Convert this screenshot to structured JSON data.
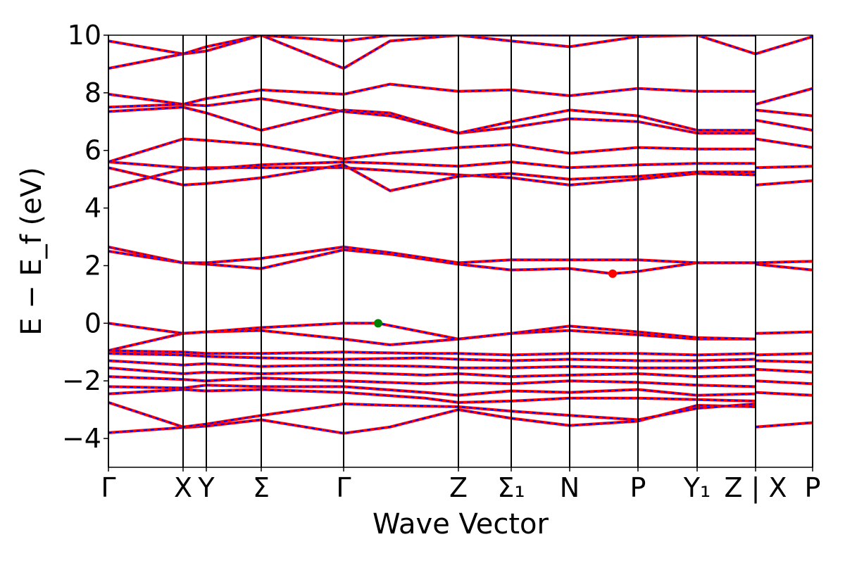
{
  "chart_data": {
    "type": "line",
    "title": "",
    "xlabel": "Wave Vector",
    "ylabel": "E − E_f (eV)",
    "ylim": [
      -5,
      10
    ],
    "y_ticks": [
      -4,
      -2,
      0,
      2,
      4,
      6,
      8,
      10
    ],
    "y_tick_labels": [
      "−4",
      "−2",
      "0",
      "2",
      "4",
      "6",
      "8",
      "10"
    ],
    "x_range": [
      0,
      1
    ],
    "kpoint_ticks": [
      {
        "x": 0.0,
        "label": "Γ"
      },
      {
        "x": 0.106,
        "label": "X"
      },
      {
        "x": 0.139,
        "label": "Y"
      },
      {
        "x": 0.217,
        "label": "Σ"
      },
      {
        "x": 0.334,
        "label": "Γ"
      },
      {
        "x": 0.497,
        "label": "Z"
      },
      {
        "x": 0.572,
        "label": "Σ₁"
      },
      {
        "x": 0.655,
        "label": "N"
      },
      {
        "x": 0.752,
        "label": "P"
      },
      {
        "x": 0.836,
        "label": "Y₁"
      },
      {
        "x": 0.919,
        "label": "Z | X"
      },
      {
        "x": 1.0,
        "label": "P"
      }
    ],
    "grid": false,
    "legend": "none",
    "band_style": {
      "outer_color": "#ff0000",
      "inner_dash_color": "#0000ff"
    },
    "markers": [
      {
        "name": "vbm",
        "x": 0.383,
        "y": 0.0,
        "color": "#008000"
      },
      {
        "name": "cbm",
        "x": 0.716,
        "y": 1.72,
        "color": "#ff0000"
      }
    ],
    "bands": [
      [
        [
          0,
          -3.8
        ],
        [
          0.106,
          -3.62
        ],
        [
          0.139,
          -3.57
        ],
        [
          0.217,
          -3.35
        ],
        [
          0.334,
          -3.82
        ],
        [
          0.4,
          -3.6
        ],
        [
          0.497,
          -3.0
        ],
        [
          0.572,
          -3.3
        ],
        [
          0.655,
          -3.55
        ],
        [
          0.752,
          -3.4
        ],
        [
          0.836,
          -2.85
        ],
        [
          0.919,
          -2.9
        ]
      ],
      [
        [
          0,
          -2.75
        ],
        [
          0.106,
          -3.6
        ],
        [
          0.139,
          -3.5
        ],
        [
          0.217,
          -3.2
        ],
        [
          0.334,
          -2.8
        ],
        [
          0.4,
          -2.85
        ],
        [
          0.497,
          -2.9
        ],
        [
          0.572,
          -3.05
        ],
        [
          0.655,
          -3.2
        ],
        [
          0.752,
          -3.35
        ],
        [
          0.836,
          -2.95
        ],
        [
          0.919,
          -2.8
        ]
      ],
      [
        [
          0,
          -2.45
        ],
        [
          0.106,
          -2.3
        ],
        [
          0.139,
          -2.35
        ],
        [
          0.217,
          -2.3
        ],
        [
          0.334,
          -2.4
        ],
        [
          0.45,
          -2.6
        ],
        [
          0.497,
          -2.75
        ],
        [
          0.572,
          -2.7
        ],
        [
          0.655,
          -2.6
        ],
        [
          0.752,
          -2.6
        ],
        [
          0.836,
          -2.65
        ],
        [
          0.919,
          -2.7
        ]
      ],
      [
        [
          0,
          -2.2
        ],
        [
          0.106,
          -2.25
        ],
        [
          0.139,
          -2.15
        ],
        [
          0.217,
          -2.2
        ],
        [
          0.334,
          -2.2
        ],
        [
          0.45,
          -2.4
        ],
        [
          0.497,
          -2.5
        ],
        [
          0.572,
          -2.35
        ],
        [
          0.655,
          -2.4
        ],
        [
          0.752,
          -2.3
        ],
        [
          0.836,
          -2.5
        ],
        [
          0.919,
          -2.45
        ]
      ],
      [
        [
          0,
          -1.85
        ],
        [
          0.106,
          -1.95
        ],
        [
          0.139,
          -2.0
        ],
        [
          0.217,
          -1.9
        ],
        [
          0.334,
          -2.0
        ],
        [
          0.45,
          -2.1
        ],
        [
          0.497,
          -2.05
        ],
        [
          0.572,
          -2.1
        ],
        [
          0.655,
          -2.0
        ],
        [
          0.752,
          -2.05
        ],
        [
          0.836,
          -2.15
        ],
        [
          0.919,
          -2.2
        ]
      ],
      [
        [
          0,
          -1.55
        ],
        [
          0.106,
          -1.75
        ],
        [
          0.139,
          -1.7
        ],
        [
          0.217,
          -1.75
        ],
        [
          0.334,
          -1.7
        ],
        [
          0.45,
          -1.8
        ],
        [
          0.497,
          -1.75
        ],
        [
          0.572,
          -1.85
        ],
        [
          0.655,
          -1.8
        ],
        [
          0.752,
          -1.75
        ],
        [
          0.836,
          -1.85
        ],
        [
          0.919,
          -1.8
        ]
      ],
      [
        [
          0,
          -1.3
        ],
        [
          0.106,
          -1.45
        ],
        [
          0.139,
          -1.4
        ],
        [
          0.217,
          -1.5
        ],
        [
          0.334,
          -1.45
        ],
        [
          0.45,
          -1.5
        ],
        [
          0.497,
          -1.55
        ],
        [
          0.572,
          -1.55
        ],
        [
          0.655,
          -1.5
        ],
        [
          0.752,
          -1.55
        ],
        [
          0.836,
          -1.55
        ],
        [
          0.919,
          -1.5
        ]
      ],
      [
        [
          0,
          -1.05
        ],
        [
          0.106,
          -1.1
        ],
        [
          0.139,
          -1.15
        ],
        [
          0.217,
          -1.2
        ],
        [
          0.334,
          -1.25
        ],
        [
          0.45,
          -1.2
        ],
        [
          0.497,
          -1.25
        ],
        [
          0.572,
          -1.3
        ],
        [
          0.655,
          -1.25
        ],
        [
          0.752,
          -1.3
        ],
        [
          0.836,
          -1.3
        ],
        [
          0.919,
          -1.25
        ]
      ],
      [
        [
          0,
          -0.95
        ],
        [
          0.106,
          -1.0
        ],
        [
          0.139,
          -1.05
        ],
        [
          0.217,
          -1.05
        ],
        [
          0.334,
          -1.0
        ],
        [
          0.45,
          -1.05
        ],
        [
          0.497,
          -1.05
        ],
        [
          0.572,
          -1.1
        ],
        [
          0.655,
          -1.05
        ],
        [
          0.752,
          -1.05
        ],
        [
          0.836,
          -1.1
        ],
        [
          0.919,
          -1.05
        ]
      ],
      [
        [
          0,
          -0.95
        ],
        [
          0.106,
          -0.35
        ],
        [
          0.139,
          -0.3
        ],
        [
          0.217,
          -0.25
        ],
        [
          0.334,
          -0.55
        ],
        [
          0.4,
          -0.75
        ],
        [
          0.497,
          -0.55
        ],
        [
          0.572,
          -0.35
        ],
        [
          0.655,
          -0.25
        ],
        [
          0.752,
          -0.4
        ],
        [
          0.836,
          -0.55
        ],
        [
          0.919,
          -0.55
        ]
      ],
      [
        [
          0,
          0.0
        ],
        [
          0.106,
          -0.35
        ],
        [
          0.139,
          -0.3
        ],
        [
          0.217,
          -0.15
        ],
        [
          0.334,
          0.0
        ],
        [
          0.383,
          0.0
        ],
        [
          0.497,
          -0.55
        ],
        [
          0.572,
          -0.35
        ],
        [
          0.655,
          -0.1
        ],
        [
          0.752,
          -0.3
        ],
        [
          0.836,
          -0.5
        ],
        [
          0.919,
          -0.55
        ]
      ],
      [
        [
          0,
          2.5
        ],
        [
          0.106,
          2.1
        ],
        [
          0.139,
          2.05
        ],
        [
          0.217,
          1.9
        ],
        [
          0.334,
          2.55
        ],
        [
          0.4,
          2.4
        ],
        [
          0.497,
          2.05
        ],
        [
          0.572,
          1.85
        ],
        [
          0.655,
          1.9
        ],
        [
          0.716,
          1.72
        ],
        [
          0.752,
          1.8
        ],
        [
          0.836,
          2.1
        ],
        [
          0.919,
          2.1
        ]
      ],
      [
        [
          0,
          2.65
        ],
        [
          0.106,
          2.1
        ],
        [
          0.139,
          2.1
        ],
        [
          0.217,
          2.25
        ],
        [
          0.334,
          2.65
        ],
        [
          0.4,
          2.45
        ],
        [
          0.497,
          2.1
        ],
        [
          0.572,
          2.2
        ],
        [
          0.655,
          2.2
        ],
        [
          0.752,
          2.2
        ],
        [
          0.836,
          2.1
        ],
        [
          0.919,
          2.1
        ]
      ],
      [
        [
          0,
          4.7
        ],
        [
          0.106,
          5.35
        ],
        [
          0.139,
          5.4
        ],
        [
          0.217,
          5.4
        ],
        [
          0.334,
          5.4
        ],
        [
          0.4,
          5.3
        ],
        [
          0.497,
          5.15
        ],
        [
          0.572,
          5.05
        ],
        [
          0.655,
          4.8
        ],
        [
          0.752,
          5.0
        ],
        [
          0.836,
          5.2
        ],
        [
          0.919,
          5.15
        ]
      ],
      [
        [
          0,
          5.4
        ],
        [
          0.106,
          4.8
        ],
        [
          0.139,
          4.85
        ],
        [
          0.217,
          5.05
        ],
        [
          0.334,
          5.5
        ],
        [
          0.4,
          4.6
        ],
        [
          0.497,
          5.1
        ],
        [
          0.572,
          5.2
        ],
        [
          0.655,
          5.0
        ],
        [
          0.752,
          5.1
        ],
        [
          0.836,
          5.25
        ],
        [
          0.919,
          5.25
        ]
      ],
      [
        [
          0,
          5.6
        ],
        [
          0.106,
          5.4
        ],
        [
          0.139,
          5.35
        ],
        [
          0.217,
          5.5
        ],
        [
          0.334,
          5.6
        ],
        [
          0.4,
          5.55
        ],
        [
          0.497,
          5.45
        ],
        [
          0.572,
          5.6
        ],
        [
          0.655,
          5.4
        ],
        [
          0.752,
          5.5
        ],
        [
          0.836,
          5.55
        ],
        [
          0.919,
          5.55
        ]
      ],
      [
        [
          0,
          5.6
        ],
        [
          0.106,
          6.4
        ],
        [
          0.139,
          6.35
        ],
        [
          0.217,
          6.2
        ],
        [
          0.334,
          5.7
        ],
        [
          0.4,
          5.9
        ],
        [
          0.497,
          6.1
        ],
        [
          0.572,
          6.2
        ],
        [
          0.655,
          5.9
        ],
        [
          0.752,
          6.1
        ],
        [
          0.836,
          6.05
        ],
        [
          0.919,
          6.05
        ]
      ],
      [
        [
          0,
          7.35
        ],
        [
          0.106,
          7.5
        ],
        [
          0.139,
          7.3
        ],
        [
          0.217,
          6.7
        ],
        [
          0.334,
          7.4
        ],
        [
          0.4,
          7.3
        ],
        [
          0.497,
          6.6
        ],
        [
          0.572,
          6.8
        ],
        [
          0.655,
          7.1
        ],
        [
          0.752,
          7.0
        ],
        [
          0.836,
          6.6
        ],
        [
          0.919,
          6.6
        ]
      ],
      [
        [
          0,
          7.5
        ],
        [
          0.106,
          7.6
        ],
        [
          0.139,
          7.55
        ],
        [
          0.217,
          7.8
        ],
        [
          0.334,
          7.35
        ],
        [
          0.4,
          7.2
        ],
        [
          0.497,
          6.6
        ],
        [
          0.572,
          7.0
        ],
        [
          0.655,
          7.4
        ],
        [
          0.752,
          7.2
        ],
        [
          0.836,
          6.7
        ],
        [
          0.919,
          6.7
        ]
      ],
      [
        [
          0,
          7.95
        ],
        [
          0.106,
          7.6
        ],
        [
          0.139,
          7.8
        ],
        [
          0.217,
          8.1
        ],
        [
          0.334,
          7.95
        ],
        [
          0.4,
          8.3
        ],
        [
          0.497,
          8.05
        ],
        [
          0.572,
          8.1
        ],
        [
          0.655,
          7.9
        ],
        [
          0.752,
          8.15
        ],
        [
          0.836,
          8.05
        ],
        [
          0.919,
          8.05
        ]
      ],
      [
        [
          0,
          8.85
        ],
        [
          0.106,
          9.35
        ],
        [
          0.139,
          9.45
        ],
        [
          0.217,
          10.0
        ],
        [
          0.334,
          8.85
        ],
        [
          0.4,
          9.8
        ],
        [
          0.497,
          10.0
        ],
        [
          0.572,
          9.8
        ],
        [
          0.655,
          9.6
        ],
        [
          0.752,
          9.95
        ],
        [
          0.836,
          10.0
        ],
        [
          0.919,
          9.35
        ]
      ],
      [
        [
          0,
          9.8
        ],
        [
          0.106,
          9.35
        ],
        [
          0.139,
          9.6
        ],
        [
          0.217,
          10.0
        ],
        [
          0.334,
          9.8
        ],
        [
          0.4,
          10.0
        ],
        [
          0.497,
          10.0
        ],
        [
          0.572,
          10.0
        ],
        [
          0.655,
          10.0
        ],
        [
          0.752,
          10.0
        ],
        [
          0.836,
          10.0
        ],
        [
          0.919,
          10.0
        ]
      ],
      [
        [
          0.919,
          9.35
        ],
        [
          1.0,
          9.95
        ]
      ],
      [
        [
          0.919,
          7.6
        ],
        [
          1.0,
          8.15
        ]
      ],
      [
        [
          0.919,
          7.4
        ],
        [
          1.0,
          7.2
        ]
      ],
      [
        [
          0.919,
          7.05
        ],
        [
          1.0,
          6.7
        ]
      ],
      [
        [
          0.919,
          6.4
        ],
        [
          1.0,
          6.1
        ]
      ],
      [
        [
          0.919,
          5.4
        ],
        [
          1.0,
          5.45
        ]
      ],
      [
        [
          0.919,
          4.8
        ],
        [
          1.0,
          4.95
        ]
      ],
      [
        [
          0.919,
          2.1
        ],
        [
          1.0,
          2.15
        ]
      ],
      [
        [
          0.919,
          2.05
        ],
        [
          1.0,
          1.85
        ]
      ],
      [
        [
          0.919,
          -0.35
        ],
        [
          1.0,
          -0.3
        ]
      ],
      [
        [
          0.919,
          -1.1
        ],
        [
          1.0,
          -1.05
        ]
      ],
      [
        [
          0.919,
          -1.3
        ],
        [
          1.0,
          -1.35
        ]
      ],
      [
        [
          0.919,
          -1.6
        ],
        [
          1.0,
          -1.7
        ]
      ],
      [
        [
          0.919,
          -2.0
        ],
        [
          1.0,
          -2.1
        ]
      ],
      [
        [
          0.919,
          -2.4
        ],
        [
          1.0,
          -2.5
        ]
      ],
      [
        [
          0.919,
          -3.6
        ],
        [
          1.0,
          -3.45
        ]
      ]
    ]
  }
}
